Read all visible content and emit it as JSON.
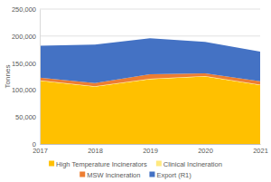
{
  "chart_data": {
    "type": "area",
    "stacked": true,
    "x": [
      2017,
      2018,
      2019,
      2020,
      2021
    ],
    "xlim": [
      2017,
      2021
    ],
    "xticks": [
      2017,
      2018,
      2019,
      2020,
      2021
    ],
    "y_label": "Tonnes",
    "ylim": [
      0,
      250000
    ],
    "yticks": [
      0,
      {
        "value": 50000,
        "label": "50,000"
      },
      {
        "value": 100000,
        "label": "100,000"
      },
      {
        "value": 150000,
        "label": "150,000"
      },
      {
        "value": 200000,
        "label": "200,000"
      },
      {
        "value": 250000,
        "label": "250,000"
      }
    ],
    "grid": true,
    "legend": "bottom",
    "series": [
      {
        "name": "High Temperature Incinerators",
        "color": "#ffc000",
        "values": [
          117000,
          106000,
          120000,
          125000,
          109000
        ]
      },
      {
        "name": "Clinical Incineration",
        "color": "#ffe97f",
        "values": [
          1000,
          1000,
          1000,
          1000,
          1000
        ]
      },
      {
        "name": "MSW Incineration",
        "color": "#ed7d31",
        "values": [
          5000,
          6000,
          8000,
          5000,
          6000
        ]
      },
      {
        "name": "Export (R1)",
        "color": "#4472c4",
        "values": [
          59000,
          71000,
          67000,
          58000,
          55000
        ]
      }
    ]
  }
}
